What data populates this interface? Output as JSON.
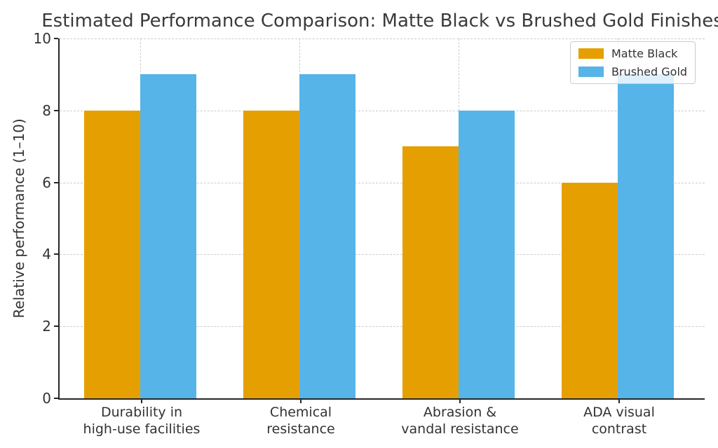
{
  "colors": {
    "matte_black_series": "#E69F00",
    "brushed_gold_series": "#56B4E9",
    "grid": "#cccccc",
    "axis": "#262626",
    "text": "#333333",
    "title_text": "#3a3a3a",
    "legend_border": "#cccccc"
  },
  "chart_data": {
    "type": "bar",
    "title": "Estimated Performance Comparison: Matte Black vs Brushed Gold Finishes",
    "xlabel": "",
    "ylabel": "Relative performance (1–10)",
    "categories": [
      "Durability in\nhigh-use facilities",
      "Chemical\nresistance",
      "Abrasion &\nvandal resistance",
      "ADA visual\ncontrast"
    ],
    "series": [
      {
        "name": "Matte Black",
        "color": "#E69F00",
        "values": [
          8,
          8,
          7,
          6
        ]
      },
      {
        "name": "Brushed Gold",
        "color": "#56B4E9",
        "values": [
          9,
          9,
          8,
          9
        ]
      }
    ],
    "ylim": [
      0,
      10
    ],
    "yticks": [
      0,
      2,
      4,
      6,
      8,
      10
    ],
    "grid": "both-axes dashed, drawn behind bars",
    "legend_position": "upper right"
  }
}
